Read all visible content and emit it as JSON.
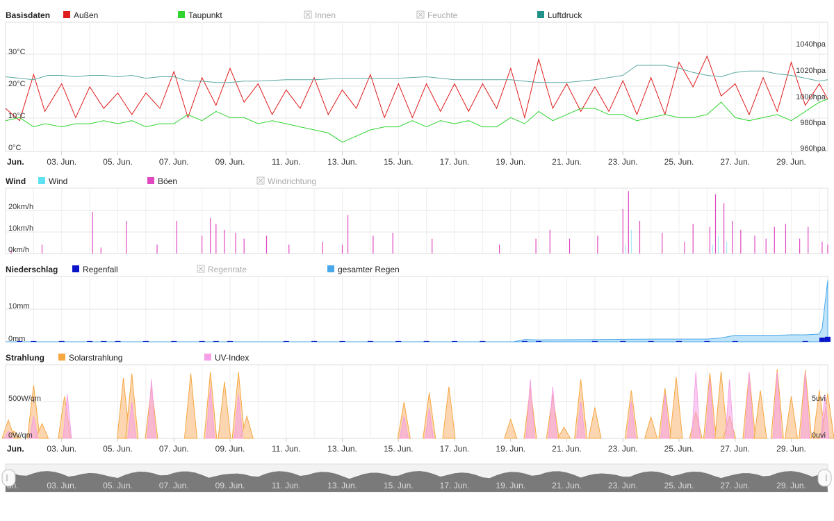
{
  "panels": {
    "basis": {
      "title": "Basisdaten",
      "legend": [
        {
          "label": "Außen",
          "color": "#e01b1b",
          "active": true
        },
        {
          "label": "Taupunkt",
          "color": "#2fd42f",
          "active": true
        },
        {
          "label": "Innen",
          "color": "#bbbbbb",
          "active": false
        },
        {
          "label": "Feuchte",
          "color": "#bbbbbb",
          "active": false
        },
        {
          "label": "Luftdruck",
          "color": "#22938a",
          "active": true
        }
      ],
      "y_left_ticks": [
        "30°C",
        "20°C",
        "10°C",
        "0°C"
      ],
      "y_right_ticks": [
        "1040hpa",
        "1020hpa",
        "1000hpa",
        "980hpa",
        "960hpa"
      ]
    },
    "wind": {
      "title": "Wind",
      "legend": [
        {
          "label": "Wind",
          "color": "#5ee2f2",
          "active": true
        },
        {
          "label": "Böen",
          "color": "#e048c0",
          "active": true
        },
        {
          "label": "Windrichtung",
          "color": "#bbbbbb",
          "active": false
        }
      ],
      "y_left_ticks": [
        "20km/h",
        "10km/h",
        "0km/h"
      ]
    },
    "rain": {
      "title": "Niederschlag",
      "legend": [
        {
          "label": "Regenfall",
          "color": "#0a14c8",
          "active": true
        },
        {
          "label": "Regenrate",
          "color": "#bbbbbb",
          "active": false
        },
        {
          "label": "gesamter Regen",
          "color": "#4aa8ea",
          "active": true
        }
      ],
      "y_left_ticks": [
        "10mm",
        "0mm"
      ]
    },
    "solar": {
      "title": "Strahlung",
      "legend": [
        {
          "label": "Solarstrahlung",
          "color": "#f5a742",
          "active": true
        },
        {
          "label": "UV-Index",
          "color": "#f5a0e6",
          "active": true
        }
      ],
      "y_left_ticks": [
        "500W/qm",
        "0W/qm"
      ],
      "y_right_ticks": [
        "5uvi",
        "0uvi"
      ]
    }
  },
  "x_axis": {
    "first_label": "Jun.",
    "labels": [
      "03. Jun.",
      "05. Jun.",
      "07. Jun.",
      "09. Jun.",
      "11. Jun.",
      "13. Jun.",
      "15. Jun.",
      "17. Jun.",
      "19. Jun.",
      "21. Jun.",
      "23. Jun.",
      "25. Jun.",
      "27. Jun.",
      "29. Jun."
    ]
  },
  "navigator": {
    "first_label": "un.",
    "labels": [
      "03. Jun.",
      "05. Jun.",
      "07. Jun.",
      "09. Jun.",
      "11. Jun.",
      "13. Jun.",
      "15. Jun.",
      "17. Jun.",
      "19. Jun.",
      "21. Jun.",
      "23. Jun.",
      "25. Jun.",
      "27. Jun.",
      "29. Jun."
    ]
  },
  "chart_data": [
    {
      "type": "line",
      "x_unit": "day of June",
      "xlim": [
        1,
        30.3
      ],
      "series": [
        {
          "name": "Außen",
          "axis": "left",
          "unit": "°C",
          "ylim": [
            0,
            42
          ],
          "x": [
            1,
            1.5,
            2,
            2.4,
            3,
            3.5,
            4,
            4.5,
            5,
            5.5,
            6,
            6.5,
            7,
            7.5,
            8,
            8.5,
            9,
            9.5,
            10,
            10.5,
            11,
            11.5,
            12,
            12.5,
            13,
            13.5,
            14,
            14.5,
            15,
            15.5,
            16,
            16.5,
            17,
            17.5,
            18,
            18.5,
            19,
            19.5,
            20,
            20.5,
            21,
            21.5,
            22,
            22.5,
            23,
            23.5,
            24,
            24.5,
            25,
            25.5,
            26,
            26.5,
            27,
            27.5,
            28,
            28.5,
            29,
            29.5,
            30,
            30.3
          ],
          "y": [
            14,
            10,
            25,
            13,
            22,
            11,
            21,
            14,
            19,
            12,
            19,
            14,
            26,
            11,
            24,
            15,
            27,
            16,
            22,
            12,
            20,
            14,
            24,
            12,
            20,
            14,
            25,
            11,
            22,
            11,
            22,
            13,
            22,
            13,
            22,
            14,
            27,
            11,
            30,
            14,
            22,
            13,
            21,
            13,
            23,
            12,
            24,
            12,
            29,
            21,
            31,
            18,
            22,
            12,
            24,
            13,
            29,
            15,
            22,
            17
          ]
        },
        {
          "name": "Taupunkt",
          "axis": "left",
          "unit": "°C",
          "ylim": [
            0,
            42
          ],
          "x": [
            1,
            1.5,
            2,
            2.4,
            3,
            3.5,
            4,
            4.5,
            5,
            5.5,
            6,
            6.5,
            7,
            7.5,
            8,
            8.5,
            9,
            9.5,
            10,
            10.5,
            11,
            11.5,
            12,
            12.5,
            13,
            13.5,
            14,
            14.5,
            15,
            15.5,
            16,
            16.5,
            17,
            17.5,
            18,
            18.5,
            19,
            19.5,
            20,
            20.5,
            21,
            21.5,
            22,
            22.5,
            23,
            23.5,
            24,
            24.5,
            25,
            25.5,
            26,
            26.5,
            27,
            27.5,
            28,
            28.5,
            29,
            29.5,
            30,
            30.3
          ],
          "y": [
            10,
            11,
            8,
            9,
            8,
            9,
            9,
            10,
            9,
            10,
            8,
            9,
            9,
            12,
            10,
            13,
            11,
            11,
            9,
            10,
            9,
            8,
            7,
            6,
            3,
            5,
            7,
            8,
            8,
            10,
            8,
            10,
            9,
            10,
            8,
            8,
            11,
            9,
            13,
            10,
            12,
            14,
            14,
            12,
            12,
            10,
            11,
            12,
            11,
            11,
            12,
            16,
            11,
            10,
            11,
            12,
            10,
            13,
            16,
            17
          ]
        },
        {
          "name": "Luftdruck",
          "axis": "right",
          "unit": "hPa",
          "ylim": [
            960,
            1050
          ],
          "x": [
            1,
            1.5,
            2,
            2.5,
            3,
            3.5,
            4,
            4.5,
            5,
            5.5,
            6,
            6.5,
            7,
            7.5,
            8,
            8.5,
            9,
            9.5,
            10,
            11,
            12,
            13,
            14,
            15,
            16,
            17,
            18,
            19,
            20,
            21,
            22,
            23,
            23.5,
            24,
            24.5,
            25,
            25.5,
            26,
            26.5,
            27,
            27.5,
            28,
            28.5,
            29,
            29.5,
            30,
            30.3
          ],
          "y": [
            1012,
            1011,
            1010,
            1013,
            1013,
            1012,
            1013,
            1013,
            1012,
            1013,
            1011,
            1012,
            1012,
            1009,
            1009,
            1008,
            1008,
            1009,
            1009,
            1010,
            1010,
            1011,
            1011,
            1011,
            1012,
            1010,
            1010,
            1010,
            1008,
            1008,
            1010,
            1013,
            1020,
            1020,
            1020,
            1018,
            1015,
            1013,
            1012,
            1015,
            1016,
            1016,
            1014,
            1013,
            1011,
            1009,
            1010
          ]
        }
      ]
    },
    {
      "type": "bar",
      "ylim": [
        0,
        22
      ],
      "series": [
        {
          "name": "Böen",
          "unit": "km/h",
          "x": [
            1.2,
            2.3,
            4.1,
            4.4,
            5.3,
            6.4,
            7.1,
            8.0,
            8.3,
            8.5,
            8.8,
            9.2,
            9.5,
            10.3,
            11.1,
            12.3,
            13.0,
            13.2,
            14.1,
            14.8,
            16.2,
            18.6,
            19.9,
            20.4,
            21.1,
            22.1,
            23.0,
            23.2,
            23.6,
            24.4,
            25.2,
            25.5,
            26.1,
            26.3,
            26.6,
            26.9,
            27.2,
            27.7,
            28.1,
            28.4,
            28.8,
            29.3,
            29.6,
            30.1,
            30.3
          ],
          "y": [
            1,
            3,
            14,
            2,
            11,
            3,
            11,
            6,
            12,
            10,
            8,
            7,
            5,
            6,
            3,
            4,
            3,
            13,
            6,
            7,
            5,
            3,
            5,
            8,
            5,
            6,
            15,
            21,
            11,
            7,
            4,
            10,
            9,
            20,
            17,
            11,
            8,
            6,
            5,
            9,
            10,
            5,
            9,
            4,
            3
          ]
        },
        {
          "name": "Wind",
          "unit": "km/h",
          "x": [
            23.1,
            23.3,
            26.2,
            26.4,
            26.7
          ],
          "y": [
            3,
            8,
            3,
            6,
            4
          ]
        }
      ]
    },
    {
      "type": "area",
      "ylim": [
        0,
        17
      ],
      "series": [
        {
          "name": "gesamter Regen",
          "unit": "mm",
          "x": [
            1,
            19.1,
            19.5,
            20,
            22,
            24,
            26,
            26.5,
            27,
            28,
            28.5,
            29,
            29.5,
            30,
            30.1,
            30.3
          ],
          "y": [
            0,
            0,
            0.6,
            0.5,
            0.6,
            0.7,
            0.7,
            1.0,
            1.7,
            1.7,
            1.7,
            1.8,
            1.8,
            2.0,
            3.5,
            16
          ]
        },
        {
          "name": "Regenfall",
          "unit": "mm",
          "x": [
            1.5,
            2,
            3,
            4,
            4.5,
            5,
            6,
            7,
            8,
            8.5,
            9,
            11,
            12,
            13,
            14,
            15,
            16,
            17,
            18,
            19.5,
            20,
            22,
            23,
            24,
            25,
            26,
            27,
            29.5,
            30.1,
            30.3
          ],
          "y": [
            0.2,
            0.2,
            0.2,
            0.2,
            0.2,
            0.2,
            0.2,
            0.2,
            0.2,
            0.2,
            0.2,
            0.2,
            0.2,
            0.2,
            0.2,
            0.2,
            0.2,
            0.2,
            0.2,
            0.2,
            0.2,
            0.2,
            0.2,
            0.2,
            0.2,
            0.2,
            0.2,
            0.2,
            1.1,
            1.3
          ]
        }
      ]
    },
    {
      "type": "area",
      "series": [
        {
          "name": "Solarstrahlung",
          "axis": "left",
          "unit": "W/qm",
          "ylim": [
            0,
            1000
          ],
          "x": [
            1.1,
            1.3,
            2,
            2.3,
            3.1,
            5.2,
            5.5,
            6.2,
            7.6,
            8.3,
            8.8,
            9.3,
            9.6,
            15.2,
            16.1,
            16.8,
            19.0,
            19.7,
            20.5,
            20.9,
            21.5,
            22.0,
            23.3,
            24.0,
            24.5,
            24.9,
            25.6,
            26.1,
            26.5,
            26.8,
            27.5,
            27.9,
            28.5,
            29.0,
            29.5,
            30.0,
            30.3
          ],
          "y": [
            250,
            100,
            720,
            200,
            570,
            820,
            880,
            700,
            880,
            900,
            770,
            900,
            300,
            490,
            620,
            700,
            260,
            690,
            590,
            150,
            800,
            420,
            650,
            290,
            680,
            830,
            360,
            890,
            910,
            300,
            890,
            650,
            940,
            570,
            930,
            650,
            610
          ]
        },
        {
          "name": "UV-Index",
          "axis": "right",
          "unit": "uvi",
          "ylim": [
            0,
            10
          ],
          "x": [
            1.1,
            2,
            3.2,
            5.5,
            6.2,
            8.3,
            9.3,
            15.2,
            16.1,
            19.7,
            20.5,
            21.5,
            23.3,
            24.5,
            25.6,
            26.1,
            26.8,
            27.5,
            28.5,
            29.5,
            30.2
          ],
          "y": [
            1,
            3,
            6,
            5,
            8,
            7,
            6,
            3,
            4,
            8,
            7,
            5,
            5,
            6,
            9,
            8,
            8,
            9,
            9,
            9,
            6
          ]
        }
      ]
    }
  ]
}
